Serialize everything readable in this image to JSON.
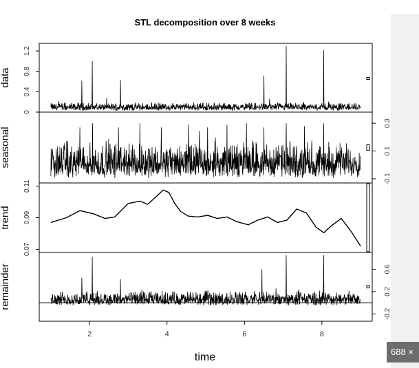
{
  "image_badge": "688 ×",
  "colors": {
    "ink": "#000000",
    "panel": "#f1f1f1",
    "badge": "#6d6d6d"
  },
  "chart_data": {
    "type": "line",
    "title": "STL decomposition over 8 weeks",
    "xlabel": "time",
    "xlim": [
      1,
      9
    ],
    "x_ticks": [
      2,
      4,
      6,
      8
    ],
    "panels": [
      {
        "name": "data",
        "ylabel": "data",
        "ylim": [
          0,
          1.35
        ],
        "y_ticks": [
          0.0,
          0.4,
          0.8,
          1.2
        ],
        "tick_side": "left",
        "scale_bar_height": 0.014,
        "series": {
          "baseline": 0.03,
          "noise_amp": 0.12,
          "spikes": [
            [
              1.8,
              0.62
            ],
            [
              2.07,
              1.0
            ],
            [
              2.8,
              0.63
            ],
            [
              6.5,
              0.72
            ],
            [
              7.08,
              1.3
            ],
            [
              8.05,
              1.22
            ]
          ]
        }
      },
      {
        "name": "seasonal",
        "ylabel": "seasonal",
        "ylim": [
          -0.13,
          0.38
        ],
        "y_ticks": [
          -0.1,
          0.1,
          0.3
        ],
        "tick_side": "right",
        "scale_bar_height": 0.04,
        "series": {
          "baseline": -0.095,
          "noise_amp": 0.2,
          "spikes": [
            [
              1.75,
              0.27
            ],
            [
              2.08,
              0.3
            ],
            [
              2.75,
              0.27
            ],
            [
              3.3,
              0.3
            ],
            [
              3.85,
              0.27
            ],
            [
              4.55,
              0.29
            ],
            [
              5.05,
              0.27
            ],
            [
              5.55,
              0.29
            ],
            [
              6.05,
              0.3
            ],
            [
              6.5,
              0.27
            ],
            [
              7.08,
              0.3
            ],
            [
              7.55,
              0.28
            ],
            [
              8.05,
              0.3
            ]
          ]
        }
      },
      {
        "name": "trend",
        "ylabel": "trend",
        "ylim": [
          0.068,
          0.112
        ],
        "y_ticks": [
          0.07,
          0.09,
          0.11
        ],
        "tick_side": "left",
        "scale_bar_height": 0.043,
        "x": [
          1.0,
          1.4,
          1.75,
          2.1,
          2.4,
          2.65,
          3.0,
          3.3,
          3.5,
          3.75,
          3.9,
          4.05,
          4.2,
          4.35,
          4.55,
          4.8,
          5.05,
          5.3,
          5.55,
          5.8,
          6.1,
          6.35,
          6.6,
          6.85,
          7.1,
          7.35,
          7.6,
          7.85,
          8.05,
          8.25,
          8.5,
          8.75,
          9.0
        ],
        "values": [
          0.087,
          0.09,
          0.0945,
          0.0925,
          0.0895,
          0.0905,
          0.099,
          0.1005,
          0.0985,
          0.104,
          0.1075,
          0.106,
          0.099,
          0.094,
          0.091,
          0.0905,
          0.0915,
          0.0895,
          0.0905,
          0.0875,
          0.0855,
          0.0885,
          0.0905,
          0.087,
          0.0885,
          0.0955,
          0.093,
          0.084,
          0.0805,
          0.085,
          0.0895,
          0.0815,
          0.072
        ]
      },
      {
        "name": "remainder",
        "ylabel": "remainder",
        "ylim": [
          -0.33,
          0.9
        ],
        "y_ticks": [
          -0.2,
          0.2,
          0.6
        ],
        "tick_side": "right",
        "show_zero_line": true,
        "scale_bar_height": 0.04,
        "series": {
          "baseline": -0.05,
          "noise_amp": 0.2,
          "spikes": [
            [
              1.8,
              0.45
            ],
            [
              2.07,
              0.82
            ],
            [
              2.8,
              0.42
            ],
            [
              6.45,
              0.6
            ],
            [
              7.08,
              0.85
            ],
            [
              8.05,
              0.85
            ]
          ]
        }
      }
    ]
  }
}
